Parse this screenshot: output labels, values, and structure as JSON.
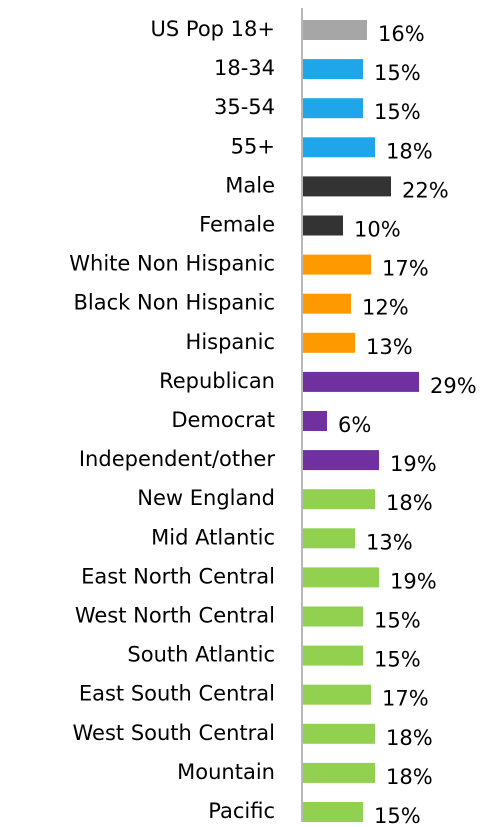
{
  "chart_data": {
    "type": "bar",
    "orientation": "horizontal",
    "categories": [
      "US Pop 18+",
      "18-34",
      "35-54",
      "55+",
      "Male",
      "Female",
      "White Non Hispanic",
      "Black Non Hispanic",
      "Hispanic",
      "Republican",
      "Democrat",
      "Independent/other",
      "New England",
      "Mid Atlantic",
      "East North Central",
      "West North Central",
      "South Atlantic",
      "East South Central",
      "West South Central",
      "Mountain",
      "Pacific"
    ],
    "values": [
      16,
      15,
      15,
      18,
      22,
      10,
      17,
      12,
      13,
      29,
      6,
      19,
      18,
      13,
      19,
      15,
      15,
      17,
      18,
      18,
      15
    ],
    "value_labels": [
      "16%",
      "15%",
      "15%",
      "18%",
      "22%",
      "10%",
      "17%",
      "12%",
      "13%",
      "29%",
      "6%",
      "19%",
      "18%",
      "13%",
      "19%",
      "15%",
      "15%",
      "17%",
      "18%",
      "18%",
      "15%"
    ],
    "colors": [
      "#a6a6a6",
      "#1fa6ea",
      "#1fa6ea",
      "#1fa6ea",
      "#333333",
      "#333333",
      "#ff9900",
      "#ff9900",
      "#ff9900",
      "#7030a0",
      "#7030a0",
      "#7030a0",
      "#92d050",
      "#92d050",
      "#92d050",
      "#92d050",
      "#92d050",
      "#92d050",
      "#92d050",
      "#92d050",
      "#92d050"
    ]
  }
}
